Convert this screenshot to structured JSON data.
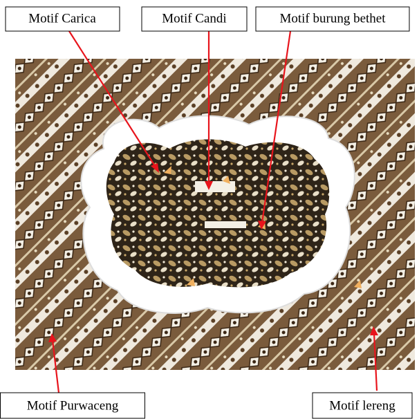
{
  "labels": {
    "top": [
      "Motif Carica",
      "Motif Candi",
      "Motif burung bethet"
    ],
    "bottom": [
      "Motif Purwaceng",
      "Motif lereng"
    ]
  }
}
